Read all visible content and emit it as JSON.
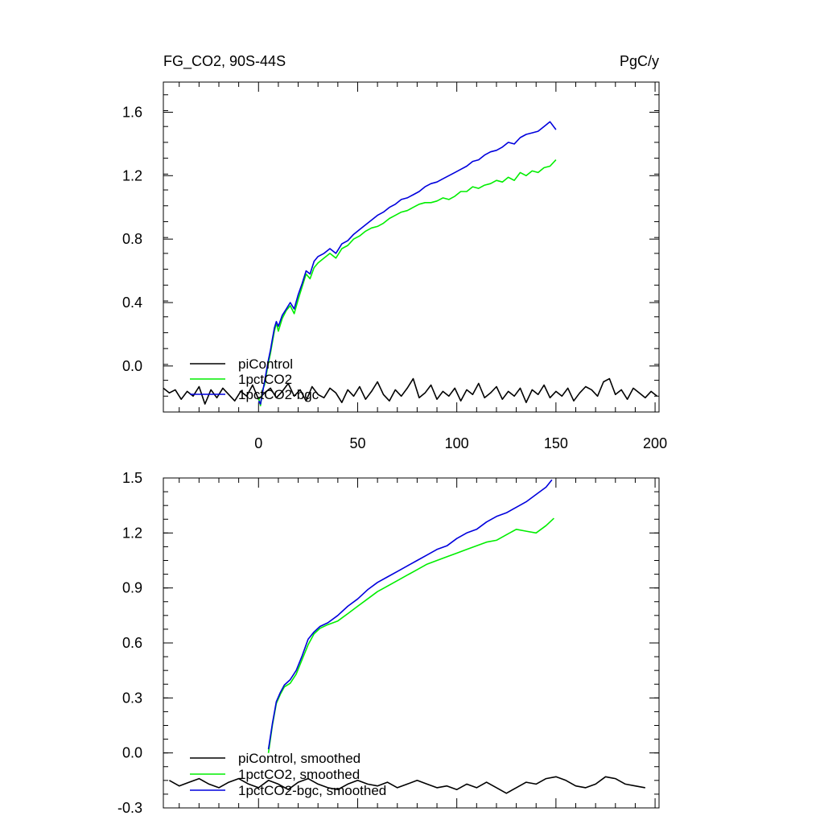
{
  "figure": {
    "title_left": "FG_CO2, 90S-44S",
    "title_right": "PgC/y"
  },
  "colors": {
    "piControl": "#000000",
    "pct": "#00ee00",
    "bgc": "#0000dd"
  },
  "chart_data": [
    {
      "type": "line",
      "title": "FG_CO2, 90S-44S",
      "units": "PgC/y",
      "xlim": [
        -48,
        202
      ],
      "ylim": [
        -0.29,
        1.79
      ],
      "xticks": [
        0,
        50,
        100,
        150,
        200
      ],
      "xtick_labels": [
        "0",
        "50",
        "100",
        "150",
        "200"
      ],
      "yticks": [
        0.0,
        0.4,
        0.8,
        1.2,
        1.6
      ],
      "ytick_labels": [
        "0.0",
        "0.4",
        "0.8",
        "1.2",
        "1.6"
      ],
      "legend_position": "bottom-left",
      "series": [
        {
          "name": "piControl",
          "color": "#000000",
          "x": [
            -48,
            -45,
            -42,
            -39,
            -36,
            -33,
            -30,
            -27,
            -24,
            -21,
            -18,
            -15,
            -12,
            -9,
            -6,
            -3,
            0,
            3,
            6,
            9,
            12,
            15,
            18,
            21,
            24,
            27,
            30,
            33,
            36,
            39,
            42,
            45,
            48,
            51,
            54,
            57,
            60,
            63,
            66,
            69,
            72,
            75,
            78,
            81,
            84,
            87,
            90,
            93,
            96,
            99,
            102,
            105,
            108,
            111,
            114,
            117,
            120,
            123,
            126,
            129,
            132,
            135,
            138,
            141,
            144,
            147,
            150,
            153,
            156,
            159,
            162,
            165,
            168,
            171,
            174,
            177,
            180,
            183,
            186,
            189,
            192,
            195,
            198,
            201
          ],
          "y": [
            -0.14,
            -0.17,
            -0.15,
            -0.21,
            -0.16,
            -0.19,
            -0.13,
            -0.24,
            -0.15,
            -0.2,
            -0.14,
            -0.18,
            -0.22,
            -0.16,
            -0.19,
            -0.12,
            -0.21,
            -0.17,
            -0.14,
            -0.2,
            -0.16,
            -0.11,
            -0.19,
            -0.15,
            -0.22,
            -0.13,
            -0.18,
            -0.2,
            -0.14,
            -0.17,
            -0.23,
            -0.15,
            -0.19,
            -0.13,
            -0.21,
            -0.16,
            -0.1,
            -0.18,
            -0.22,
            -0.15,
            -0.19,
            -0.14,
            -0.08,
            -0.2,
            -0.17,
            -0.12,
            -0.21,
            -0.16,
            -0.19,
            -0.14,
            -0.22,
            -0.15,
            -0.18,
            -0.11,
            -0.2,
            -0.17,
            -0.13,
            -0.21,
            -0.16,
            -0.19,
            -0.14,
            -0.23,
            -0.15,
            -0.18,
            -0.12,
            -0.2,
            -0.16,
            -0.19,
            -0.14,
            -0.22,
            -0.17,
            -0.13,
            -0.15,
            -0.19,
            -0.1,
            -0.08,
            -0.18,
            -0.15,
            -0.21,
            -0.14,
            -0.17,
            -0.2,
            -0.16,
            -0.19
          ]
        },
        {
          "name": "1pctCO2",
          "color": "#00ee00",
          "x": [
            0,
            1,
            2,
            3,
            4,
            5,
            6,
            7,
            8,
            9,
            10,
            12,
            14,
            16,
            18,
            20,
            22,
            24,
            26,
            28,
            30,
            33,
            36,
            39,
            42,
            45,
            48,
            51,
            54,
            57,
            60,
            63,
            66,
            69,
            72,
            75,
            78,
            81,
            84,
            87,
            90,
            93,
            96,
            99,
            102,
            105,
            108,
            111,
            114,
            117,
            120,
            123,
            126,
            129,
            132,
            135,
            138,
            141,
            144,
            147,
            150
          ],
          "y": [
            -0.2,
            -0.25,
            -0.15,
            -0.12,
            -0.05,
            0.02,
            0.08,
            0.15,
            0.22,
            0.27,
            0.22,
            0.3,
            0.35,
            0.38,
            0.33,
            0.42,
            0.5,
            0.58,
            0.55,
            0.62,
            0.65,
            0.68,
            0.71,
            0.68,
            0.74,
            0.76,
            0.8,
            0.82,
            0.85,
            0.87,
            0.88,
            0.9,
            0.93,
            0.95,
            0.97,
            0.98,
            1.0,
            1.02,
            1.03,
            1.03,
            1.04,
            1.06,
            1.05,
            1.07,
            1.1,
            1.1,
            1.13,
            1.12,
            1.14,
            1.15,
            1.17,
            1.16,
            1.19,
            1.17,
            1.22,
            1.2,
            1.23,
            1.22,
            1.25,
            1.26,
            1.3
          ]
        },
        {
          "name": "1pctCO2-bgc",
          "color": "#0000dd",
          "x": [
            0,
            1,
            2,
            3,
            4,
            5,
            6,
            7,
            8,
            9,
            10,
            12,
            14,
            16,
            18,
            20,
            22,
            24,
            26,
            28,
            30,
            33,
            36,
            39,
            42,
            45,
            48,
            51,
            54,
            57,
            60,
            63,
            66,
            69,
            72,
            75,
            78,
            81,
            84,
            87,
            90,
            93,
            96,
            99,
            102,
            105,
            108,
            111,
            114,
            117,
            120,
            123,
            126,
            129,
            132,
            135,
            138,
            141,
            144,
            147,
            150
          ],
          "y": [
            -0.22,
            -0.24,
            -0.17,
            -0.1,
            -0.03,
            0.04,
            0.1,
            0.17,
            0.24,
            0.28,
            0.25,
            0.32,
            0.36,
            0.4,
            0.36,
            0.45,
            0.52,
            0.6,
            0.58,
            0.66,
            0.69,
            0.71,
            0.74,
            0.71,
            0.77,
            0.79,
            0.83,
            0.86,
            0.89,
            0.92,
            0.95,
            0.97,
            1.0,
            1.02,
            1.05,
            1.06,
            1.08,
            1.1,
            1.13,
            1.15,
            1.16,
            1.18,
            1.2,
            1.22,
            1.24,
            1.26,
            1.29,
            1.3,
            1.33,
            1.35,
            1.36,
            1.38,
            1.41,
            1.4,
            1.44,
            1.46,
            1.47,
            1.48,
            1.51,
            1.54,
            1.49
          ]
        }
      ]
    },
    {
      "type": "line",
      "xlim": [
        -48,
        202
      ],
      "ylim": [
        -0.3,
        1.5
      ],
      "xticks": [
        0,
        50,
        100,
        150,
        200
      ],
      "yticks": [
        -0.3,
        0.0,
        0.3,
        0.6,
        0.9,
        1.2,
        1.5
      ],
      "ytick_labels": [
        "-0.3",
        "0.0",
        "0.3",
        "0.6",
        "0.9",
        "1.2",
        "1.5"
      ],
      "legend_position": "bottom-left",
      "series": [
        {
          "name": "piControl, smoothed",
          "color": "#000000",
          "x": [
            -45,
            -40,
            -35,
            -30,
            -25,
            -20,
            -15,
            -10,
            -5,
            0,
            5,
            10,
            15,
            20,
            25,
            30,
            35,
            40,
            45,
            50,
            55,
            60,
            65,
            70,
            75,
            80,
            85,
            90,
            95,
            100,
            105,
            110,
            115,
            120,
            125,
            130,
            135,
            140,
            145,
            150,
            155,
            160,
            165,
            170,
            175,
            180,
            185,
            190,
            195
          ],
          "y": [
            -0.15,
            -0.18,
            -0.16,
            -0.14,
            -0.17,
            -0.19,
            -0.16,
            -0.14,
            -0.17,
            -0.19,
            -0.15,
            -0.17,
            -0.2,
            -0.16,
            -0.14,
            -0.17,
            -0.19,
            -0.2,
            -0.17,
            -0.15,
            -0.17,
            -0.18,
            -0.16,
            -0.19,
            -0.17,
            -0.15,
            -0.17,
            -0.19,
            -0.18,
            -0.2,
            -0.17,
            -0.19,
            -0.16,
            -0.19,
            -0.22,
            -0.19,
            -0.16,
            -0.17,
            -0.14,
            -0.13,
            -0.15,
            -0.18,
            -0.19,
            -0.17,
            -0.13,
            -0.14,
            -0.17,
            -0.18,
            -0.19
          ]
        },
        {
          "name": "1pctCO2, smoothed",
          "color": "#00ee00",
          "x": [
            5,
            7,
            9,
            11,
            13,
            16,
            19,
            22,
            25,
            28,
            31,
            35,
            40,
            45,
            50,
            55,
            60,
            65,
            70,
            75,
            80,
            85,
            90,
            95,
            100,
            105,
            110,
            115,
            120,
            125,
            130,
            135,
            140,
            145,
            149
          ],
          "y": [
            0.0,
            0.15,
            0.27,
            0.32,
            0.36,
            0.38,
            0.43,
            0.51,
            0.59,
            0.65,
            0.68,
            0.7,
            0.72,
            0.76,
            0.8,
            0.84,
            0.88,
            0.91,
            0.94,
            0.97,
            1.0,
            1.03,
            1.05,
            1.07,
            1.09,
            1.11,
            1.13,
            1.15,
            1.16,
            1.19,
            1.22,
            1.21,
            1.2,
            1.24,
            1.28
          ]
        },
        {
          "name": "1pctCO2-bgc, smoothed",
          "color": "#0000dd",
          "x": [
            5,
            7,
            9,
            11,
            13,
            16,
            19,
            22,
            25,
            28,
            31,
            35,
            40,
            45,
            50,
            55,
            60,
            65,
            70,
            75,
            80,
            85,
            90,
            95,
            100,
            105,
            110,
            115,
            120,
            125,
            130,
            135,
            140,
            145,
            148
          ],
          "y": [
            0.02,
            0.16,
            0.28,
            0.33,
            0.37,
            0.4,
            0.45,
            0.53,
            0.62,
            0.66,
            0.69,
            0.71,
            0.75,
            0.8,
            0.84,
            0.89,
            0.93,
            0.96,
            0.99,
            1.02,
            1.05,
            1.08,
            1.11,
            1.13,
            1.17,
            1.2,
            1.22,
            1.26,
            1.29,
            1.31,
            1.34,
            1.37,
            1.41,
            1.45,
            1.49
          ]
        }
      ]
    }
  ]
}
